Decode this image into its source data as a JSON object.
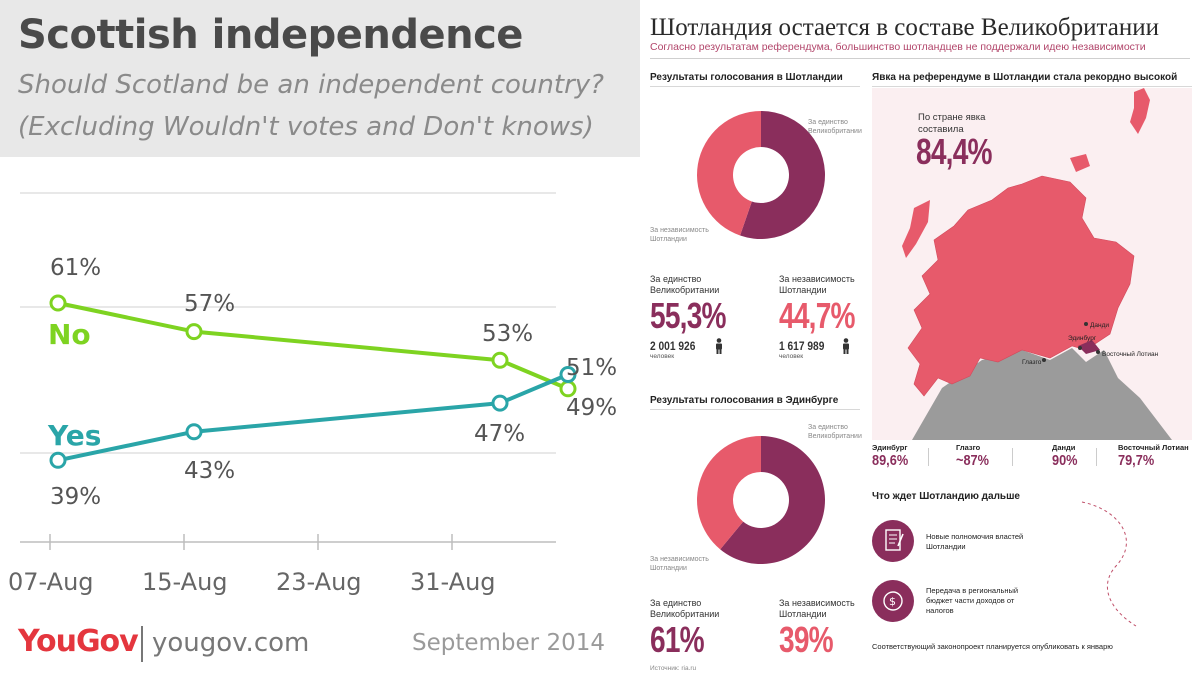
{
  "left": {
    "title": "Scottish independence",
    "subtitle_line1": "Should Scotland be an independent country?",
    "subtitle_line2": "(Excluding Wouldn't votes and Don't knows)",
    "logo": "YouGov",
    "site": "yougov.com",
    "date": "September 2014"
  },
  "chart_data": {
    "type": "line",
    "categories": [
      "07-Aug",
      "15-Aug",
      "23-Aug",
      "31-Aug"
    ],
    "series": [
      {
        "name": "No",
        "color": "#7ed321",
        "points": [
          {
            "x": "Aug 7",
            "y": 61
          },
          {
            "x": "Aug 15",
            "y": 57
          },
          {
            "x": "Sep 2",
            "y": 53
          },
          {
            "x": "Sep 6",
            "y": 49
          }
        ],
        "labels": [
          "61%",
          "57%",
          "53%",
          "49%"
        ]
      },
      {
        "name": "Yes",
        "color": "#2aa5a8",
        "points": [
          {
            "x": "Aug 7",
            "y": 39
          },
          {
            "x": "Aug 15",
            "y": 43
          },
          {
            "x": "Sep 2",
            "y": 47
          },
          {
            "x": "Sep 6",
            "y": 51
          }
        ],
        "labels": [
          "39%",
          "43%",
          "47%",
          "51%"
        ]
      }
    ],
    "grid": true
  },
  "right": {
    "title": "Шотландия остается в составе Великобритании",
    "subtitle": "Согласно результатам референдума, большинство шотландцев не поддержали идею независимости",
    "scotland": {
      "heading": "Результаты голосования в Шотландии",
      "donut_label_union": "За единство Великобритании",
      "donut_label_indep": "За независимость Шотландии",
      "union_label": "За единство Великобритании",
      "indep_label": "За независимость Шотландии",
      "union_pct": "55,3%",
      "indep_pct": "44,7%",
      "union_share": 55.3,
      "indep_share": 44.7,
      "union_count": "2 001 926",
      "indep_count": "1 617 989",
      "unit": "человек"
    },
    "edinburgh": {
      "heading": "Результаты голосования в Эдинбурге",
      "donut_label_union": "За единство Великобритании",
      "donut_label_indep": "За независимость Шотландии",
      "union_label": "За единство Великобритании",
      "indep_label": "За независимость Шотландии",
      "union_pct": "61%",
      "indep_pct": "39%",
      "union_share": 61,
      "indep_share": 39
    },
    "turnout": {
      "heading": "Явка на референдуме в Шотландии стала рекордно высокой",
      "national_label": "По стране явка составила",
      "national_value": "84,4%",
      "map_labels": [
        "Данди",
        "Эдинбург",
        "Глазго",
        "Восточный Лотиан"
      ],
      "regions": [
        {
          "name": "Эдинбург",
          "value": "89,6%"
        },
        {
          "name": "Глазго",
          "value": "~87%"
        },
        {
          "name": "Данди",
          "value": "90%"
        },
        {
          "name": "Восточный Лотиан",
          "value": "79,7%"
        }
      ]
    },
    "next": {
      "heading": "Что ждет Шотландию дальше",
      "items": [
        "Новые полномочия властей Шотландии",
        "Передача в региональный бюджет части доходов от налогов"
      ],
      "footnote": "Соответствующий законопроект планируется опубликовать к январю"
    },
    "source": "Источник: ria.ru",
    "colors": {
      "union": "#8a2e5c",
      "indep": "#e75a6b",
      "map": "#e75a6b"
    }
  }
}
